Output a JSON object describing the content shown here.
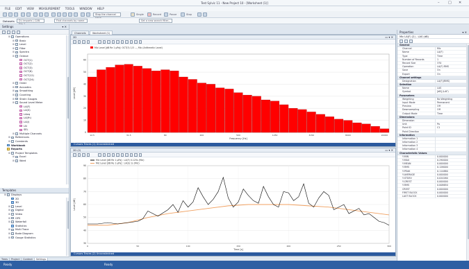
{
  "window": {
    "title": "Test Sylvic 11 - New Project 10 - [Worksheet (1)]",
    "controls": [
      "–",
      "□",
      "✕"
    ]
  },
  "menu": [
    "FILE",
    "EDIT",
    "VIEW",
    "MEASUREMENT",
    "TOOLS",
    "WINDOW",
    "HELP"
  ],
  "toolbar": {
    "items": [
      "Single",
      "Record",
      "Pause",
      "Stop"
    ],
    "select_value": "Stop the channel pane..."
  },
  "addressbar": {
    "label": "Datasets",
    "path": "D:\\ imports \\ CAN File 1",
    "search": "Find channels by name",
    "filter": "Set a new search filter..."
  },
  "left_panel": {
    "title": "Settings",
    "tree": [
      {
        "text": "Operations",
        "indent": 2,
        "icon": "fold"
      },
      {
        "text": "Basic",
        "indent": 3,
        "icon": "fold"
      },
      {
        "text": "Level",
        "indent": 3,
        "icon": "fold"
      },
      {
        "text": "Filter",
        "indent": 3,
        "icon": "fold"
      },
      {
        "text": "Spectra",
        "indent": 3,
        "icon": "fold"
      },
      {
        "text": "Octave",
        "indent": 3,
        "icon": "fold"
      },
      {
        "text": "OCT(1)",
        "indent": 4,
        "icon": "pink"
      },
      {
        "text": "OCT(2)",
        "indent": 4,
        "icon": "pink"
      },
      {
        "text": "OCT(3)",
        "indent": 4,
        "icon": "pink"
      },
      {
        "text": "OCT(6)",
        "indent": 4,
        "icon": "pink"
      },
      {
        "text": "OCT(12)",
        "indent": 4,
        "icon": "pink"
      },
      {
        "text": "OCT(24)",
        "indent": 4,
        "icon": "pink"
      },
      {
        "text": "Order",
        "indent": 3,
        "icon": "fold"
      },
      {
        "text": "Acoustics",
        "indent": 3,
        "icon": "fold"
      },
      {
        "text": "Smoothing",
        "indent": 3,
        "icon": "fold"
      },
      {
        "text": "Counting",
        "indent": 3,
        "icon": "fold"
      },
      {
        "text": "Strain Gauges",
        "indent": 3,
        "icon": "fold"
      },
      {
        "text": "Sound Level Meter",
        "indent": 3,
        "icon": "fold"
      },
      {
        "text": "LA(F)",
        "indent": 4,
        "icon": "pink"
      },
      {
        "text": "LA(S)",
        "indent": 4,
        "icon": "pink"
      },
      {
        "text": "LAeq",
        "indent": 4,
        "icon": "pink"
      },
      {
        "text": "LA(fh)",
        "indent": 4,
        "icon": "pink"
      },
      {
        "text": "LA(i)",
        "indent": 4,
        "icon": "pink"
      },
      {
        "text": "LN",
        "indent": 4,
        "icon": "pink"
      },
      {
        "text": "SEL",
        "indent": 4,
        "icon": "pink"
      },
      {
        "text": "Multiple Channels",
        "indent": 3,
        "icon": "fold"
      },
      {
        "text": "References",
        "indent": 2,
        "icon": "fold"
      },
      {
        "text": "Constants",
        "indent": 2,
        "icon": "fold"
      },
      {
        "text": "Workbook",
        "indent": 1,
        "icon": "blu",
        "bold": true
      },
      {
        "text": "Reports",
        "indent": 1,
        "icon": "yel",
        "bold": true
      },
      {
        "text": "Project Templates",
        "indent": 2,
        "icon": "fold"
      },
      {
        "text": "Excel",
        "indent": 3,
        "icon": "fold"
      },
      {
        "text": "Word",
        "indent": 3,
        "icon": "fold"
      }
    ],
    "tree2_title": "Templates",
    "tree2": [
      {
        "text": "Displays",
        "indent": 1,
        "icon": "fold"
      },
      {
        "text": "2D",
        "indent": 2,
        "icon": "blu"
      },
      {
        "text": "3D",
        "indent": 2,
        "icon": "blu"
      },
      {
        "text": "Level",
        "indent": 2,
        "icon": "fold"
      },
      {
        "text": "Digital",
        "indent": 2,
        "icon": "fold"
      },
      {
        "text": "Video",
        "indent": 2,
        "icon": "fold"
      },
      {
        "text": "GPS",
        "indent": 2,
        "icon": "fold"
      },
      {
        "text": "Waterfall",
        "indent": 2,
        "icon": "fold"
      },
      {
        "text": "Statistics",
        "indent": 2,
        "icon": "blu"
      },
      {
        "text": "Multi Trace",
        "indent": 2,
        "icon": "fold"
      },
      {
        "text": "Bode Diagram",
        "indent": 2,
        "icon": "fold"
      },
      {
        "text": "Gauge Statistics",
        "indent": 2,
        "icon": "fold"
      }
    ],
    "tabs": [
      "Trees",
      "Project",
      "Context",
      "Settings"
    ]
  },
  "doc_tabs": [
    "Channels",
    "Worksheet (1)"
  ],
  "plot1": {
    "title": "2D",
    "legend": "Mic Level [dB Re 1 µPa]: OCT(3) 1/3 ..., Mic (Arithmetic Level)",
    "ylabel": "Level [dB]",
    "xlabel": "Frequency [Hz]",
    "footer": "Cursors   Traces (1)   Unconstrained"
  },
  "plot2": {
    "title": "2D (2)",
    "legend1": "Mic Level [dB Re 1 µPa] : LA(F) 0.125s (Mic)",
    "legend2": "Mic Level [dB Re 1 µPa] : LA(S) 1s (Mic)",
    "ylabel": "Level [dB]",
    "xlabel": "Time [s]",
    "footer": "Cursors   Traces (2)   Unconstrained"
  },
  "chart_data": [
    {
      "type": "bar",
      "title": "",
      "xlabel": "Frequency [Hz]",
      "ylabel": "Level [dB]",
      "categories": [
        "12.5",
        "16",
        "20",
        "25",
        "31.5",
        "40",
        "50",
        "63",
        "80",
        "100",
        "125",
        "160",
        "200",
        "250",
        "315",
        "400",
        "500",
        "630",
        "800",
        "1000",
        "1250",
        "1600",
        "2000",
        "2500",
        "3150",
        "4000",
        "5000",
        "6300",
        "8000",
        "10000",
        "12500",
        "16000",
        "20000"
      ],
      "values": [
        46,
        52,
        54,
        56,
        56.5,
        55,
        53,
        51,
        52,
        51,
        46,
        44,
        41,
        40,
        37,
        36,
        33,
        31,
        30,
        27,
        26,
        23,
        20,
        19,
        17,
        15,
        13,
        11,
        10,
        8,
        7,
        5,
        3
      ],
      "ylim": [
        0,
        65
      ],
      "color": "#ff0000"
    },
    {
      "type": "line",
      "xlabel": "Time [s]",
      "ylabel": "Level [dB]",
      "xlim": [
        0,
        300
      ],
      "ylim": [
        30,
        90
      ],
      "series": [
        {
          "name": "LA(F)",
          "color": "#000000",
          "x": [
            0,
            10,
            20,
            30,
            40,
            50,
            55,
            60,
            70,
            80,
            85,
            90,
            95,
            100,
            105,
            110,
            115,
            120,
            125,
            130,
            135,
            140,
            145,
            150,
            155,
            160,
            165,
            170,
            175,
            180,
            185,
            190,
            195,
            200,
            205,
            210,
            215,
            220,
            225,
            230,
            235,
            240,
            245,
            250,
            255,
            260,
            265,
            270,
            275,
            280,
            285,
            290,
            295,
            300
          ],
          "y": [
            45,
            45,
            46,
            45,
            46,
            47,
            49,
            55,
            51,
            56,
            60,
            54,
            63,
            58,
            62,
            73,
            66,
            60,
            64,
            70,
            81,
            65,
            58,
            62,
            72,
            67,
            63,
            61,
            74,
            66,
            60,
            58,
            70,
            69,
            63,
            66,
            76,
            61,
            58,
            65,
            70,
            67,
            56,
            58,
            60,
            53,
            55,
            57,
            52,
            53,
            50,
            47,
            46,
            44
          ]
        },
        {
          "name": "LA(S)",
          "color": "#f0a060",
          "x": [
            0,
            20,
            40,
            60,
            80,
            100,
            120,
            140,
            160,
            180,
            200,
            220,
            240,
            260,
            280,
            300
          ],
          "y": [
            44,
            44,
            46,
            50,
            53,
            55,
            57,
            59,
            60,
            60,
            60,
            59,
            58,
            56,
            54,
            52
          ]
        }
      ]
    }
  ],
  "properties": {
    "title": "Properties",
    "object": "Mic  LA(F) (2) - LAS (dB)",
    "categories": [
      {
        "name": "General",
        "rows": [
          [
            "Channel",
            "Mic"
          ],
          [
            "Name",
            "LA(F)"
          ],
          [
            "Type",
            "Time"
          ],
          [
            "Number of Records",
            "1"
          ],
          [
            "Record Size",
            "370"
          ],
          [
            "Operation",
            "LA(F) RMS"
          ],
          [
            "Save",
            "On"
          ],
          [
            "Export",
            "On"
          ]
        ]
      },
      {
        "name": "Channel settings",
        "rows": [
          [
            "Designation",
            "LA(F)(RMS)"
          ]
        ]
      },
      {
        "name": "Selection",
        "rows": [
          [
            "Name",
            "LAS"
          ],
          [
            "Symbol",
            "[dB] (LAF)"
          ]
        ]
      },
      {
        "name": "Parameters",
        "rows": [
          [
            "Weighting",
            "No Weighting"
          ],
          [
            "Input Mode",
            "Permanent"
          ],
          [
            "Preview",
            "Off"
          ],
          [
            "Downsampling",
            "Off"
          ],
          [
            "Output Mode",
            "Time"
          ]
        ]
      },
      {
        "name": "Dimensions",
        "rows": [
          [
            "Dimension",
            ""
          ],
          [
            "Unit",
            "Pa"
          ],
          [
            "Point ID",
            "C1"
          ],
          [
            "Point Direction",
            ""
          ]
        ]
      },
      {
        "name": "Information",
        "rows": [
          [
            "Information 1",
            ""
          ],
          [
            "Information 2",
            ""
          ],
          [
            "Information 3",
            ""
          ],
          [
            "Information 4",
            ""
          ]
        ]
      },
      {
        "name": "Characteristic Values",
        "rows": [
          [
            "Y-MIN",
            "0.000000"
          ],
          [
            "Y-MAX",
            "0.290000"
          ],
          [
            "Y-MEAN",
            "0.000000"
          ],
          [
            "Y-RMS",
            "0.126000"
          ],
          [
            "Y-PEAK",
            "0.114880"
          ],
          [
            "Y-AVERAGE",
            "0.000000"
          ],
          [
            "Y-STDEV",
            "0.020260"
          ],
          [
            "Y-CREST",
            "0.000000"
          ],
          [
            "Y-RMS",
            "0.008650"
          ],
          [
            "CREST",
            "0.000000"
          ],
          [
            "FIRST BLOCK",
            "0.000000"
          ],
          [
            "LAST BLOCK",
            "0.000000"
          ]
        ]
      }
    ]
  },
  "status": {
    "left": "Ready",
    "center": "Ready"
  }
}
